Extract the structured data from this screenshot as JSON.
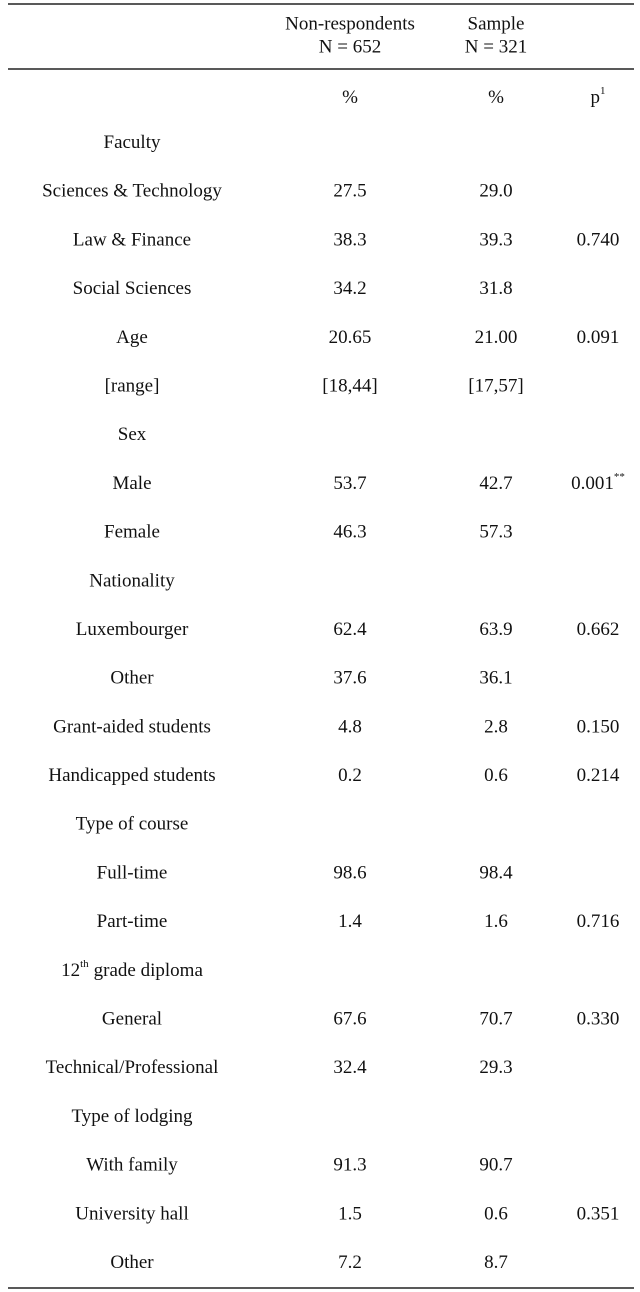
{
  "table": {
    "header": {
      "columns": [
        {
          "lines": [
            "Non-respondents",
            "N = 652"
          ]
        },
        {
          "lines": [
            "Sample",
            "N = 321"
          ]
        }
      ],
      "units": [
        {
          "text": "%"
        },
        {
          "text": "%"
        },
        {
          "text": "p",
          "sup": "1"
        }
      ]
    },
    "rows": [
      {
        "label": {
          "text": "Faculty"
        }
      },
      {
        "label": {
          "text": "Sciences & Technology"
        },
        "cells": [
          {
            "text": "27.5"
          },
          {
            "text": "29.0"
          }
        ]
      },
      {
        "label": {
          "text": "Law & Finance"
        },
        "cells": [
          {
            "text": "38.3"
          },
          {
            "text": "39.3"
          },
          {
            "text": "0.740"
          }
        ]
      },
      {
        "label": {
          "text": "Social Sciences"
        },
        "cells": [
          {
            "text": "34.2"
          },
          {
            "text": "31.8"
          }
        ]
      },
      {
        "label": {
          "text": "Age"
        },
        "cells": [
          {
            "text": "20.65"
          },
          {
            "text": "21.00"
          },
          {
            "text": "0.091"
          }
        ]
      },
      {
        "label": {
          "text": "[range]"
        },
        "cells": [
          {
            "text": "[18,44]"
          },
          {
            "text": "[17,57]"
          }
        ]
      },
      {
        "label": {
          "text": "Sex"
        }
      },
      {
        "label": {
          "text": "Male"
        },
        "cells": [
          {
            "text": "53.7"
          },
          {
            "text": "42.7"
          },
          {
            "text": "0.001",
            "sup": "**"
          }
        ]
      },
      {
        "label": {
          "text": "Female"
        },
        "cells": [
          {
            "text": "46.3"
          },
          {
            "text": "57.3"
          }
        ]
      },
      {
        "label": {
          "text": "Nationality"
        }
      },
      {
        "label": {
          "text": "Luxembourger"
        },
        "cells": [
          {
            "text": "62.4"
          },
          {
            "text": "63.9"
          },
          {
            "text": "0.662"
          }
        ]
      },
      {
        "label": {
          "text": "Other"
        },
        "cells": [
          {
            "text": "37.6"
          },
          {
            "text": "36.1"
          }
        ]
      },
      {
        "label": {
          "text": "Grant-aided students"
        },
        "cells": [
          {
            "text": "4.8"
          },
          {
            "text": "2.8"
          },
          {
            "text": "0.150"
          }
        ]
      },
      {
        "label": {
          "text": "Handicapped students"
        },
        "cells": [
          {
            "text": "0.2"
          },
          {
            "text": "0.6"
          },
          {
            "text": "0.214"
          }
        ]
      },
      {
        "label": {
          "text": "Type of course"
        }
      },
      {
        "label": {
          "text": "Full-time"
        },
        "cells": [
          {
            "text": "98.6"
          },
          {
            "text": "98.4"
          }
        ]
      },
      {
        "label": {
          "text": "Part-time"
        },
        "cells": [
          {
            "text": "1.4"
          },
          {
            "text": "1.6"
          },
          {
            "text": "0.716"
          }
        ]
      },
      {
        "label": {
          "text": "12",
          "sup": "th",
          "rest": "grade diploma"
        }
      },
      {
        "label": {
          "text": "General"
        },
        "cells": [
          {
            "text": "67.6"
          },
          {
            "text": "70.7"
          },
          {
            "text": "0.330"
          }
        ]
      },
      {
        "label": {
          "text": "Technical/Professional"
        },
        "cells": [
          {
            "text": "32.4"
          },
          {
            "text": "29.3"
          }
        ]
      },
      {
        "label": {
          "text": "Type of lodging"
        }
      },
      {
        "label": {
          "text": "With family"
        },
        "cells": [
          {
            "text": "91.3"
          },
          {
            "text": "90.7"
          }
        ]
      },
      {
        "label": {
          "text": "University hall"
        },
        "cells": [
          {
            "text": "1.5"
          },
          {
            "text": "0.6"
          },
          {
            "text": "0.351"
          }
        ]
      },
      {
        "label": {
          "text": "Other"
        },
        "cells": [
          {
            "text": "7.2"
          },
          {
            "text": "8.7"
          }
        ]
      }
    ]
  }
}
